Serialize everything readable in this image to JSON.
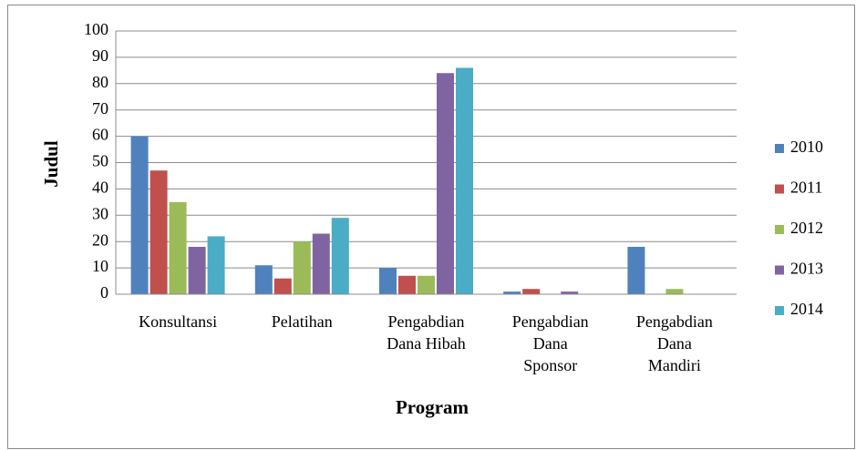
{
  "chart_data": {
    "type": "bar",
    "x_label": "Program",
    "y_label": "Judul",
    "categories": [
      "Konsultansi",
      "Pelatihan",
      "Pengabdian Dana Hibah",
      "Pengabdian Dana Sponsor",
      "Pengabdian Dana Mandiri"
    ],
    "series": [
      {
        "name": "2010",
        "color": "#4f81bd",
        "values": [
          60,
          11,
          10,
          1,
          18
        ]
      },
      {
        "name": "2011",
        "color": "#c0504d",
        "values": [
          47,
          6,
          7,
          2,
          0
        ]
      },
      {
        "name": "2012",
        "color": "#9bbb59",
        "values": [
          35,
          20,
          7,
          0,
          2
        ]
      },
      {
        "name": "2013",
        "color": "#8064a2",
        "values": [
          18,
          23,
          84,
          1,
          0
        ]
      },
      {
        "name": "2014",
        "color": "#4bacc6",
        "values": [
          22,
          29,
          86,
          0,
          0
        ]
      }
    ],
    "ylim": [
      0,
      100
    ],
    "yticks": [
      0,
      10,
      20,
      30,
      40,
      50,
      60,
      70,
      80,
      90,
      100
    ],
    "grid": true,
    "legend": "right"
  }
}
